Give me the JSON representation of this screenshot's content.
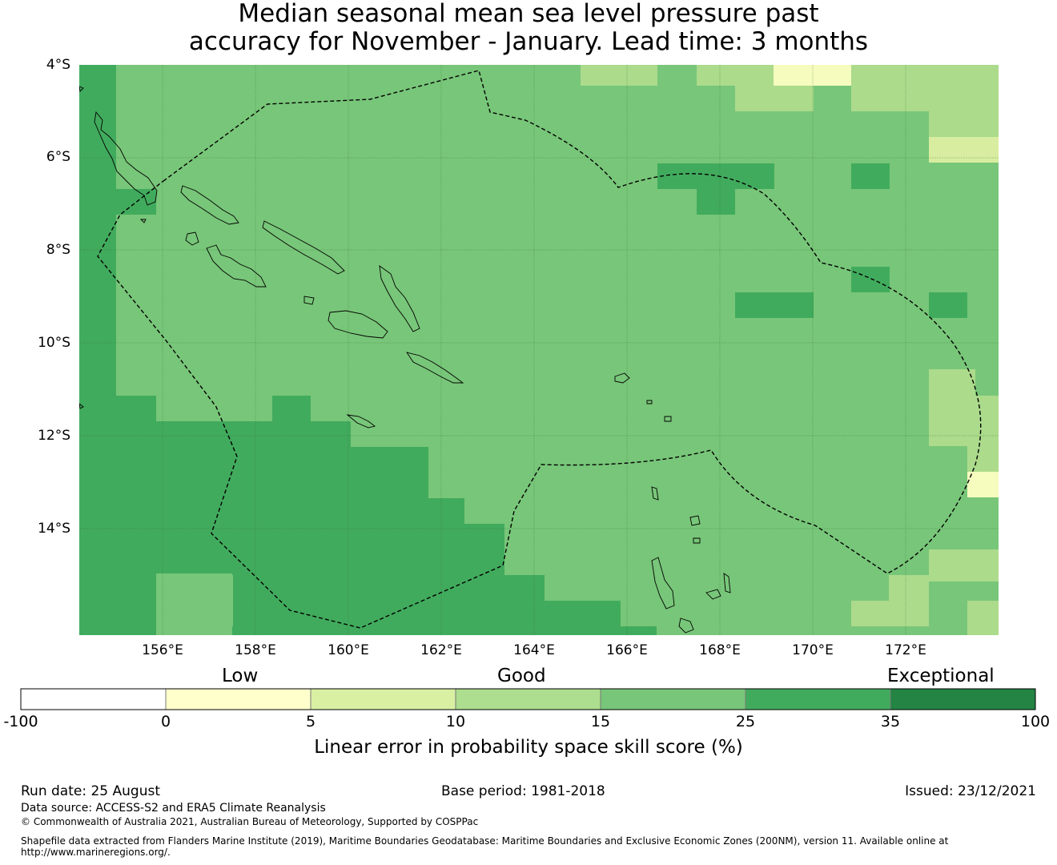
{
  "title": {
    "line1": "Median seasonal mean sea level pressure past",
    "line2": "accuracy for November - January. Lead time: 3 months"
  },
  "map": {
    "lat_labels": [
      "4°S",
      "6°S",
      "8°S",
      "10°S",
      "12°S",
      "14°S"
    ],
    "lon_labels": [
      "156°E",
      "158°E",
      "160°E",
      "162°E",
      "164°E",
      "166°E",
      "168°E",
      "170°E",
      "172°E"
    ],
    "extent": {
      "lon_min": 154.2,
      "lon_max": 174.0,
      "lat_min": -16.3,
      "lat_max": -4.0
    },
    "colors": {
      "c1": "#f6fbbe",
      "c2": "#d8eda0",
      "c3": "#abdb8b",
      "c4": "#78c679",
      "c5": "#41ab5d",
      "c6": "#238443"
    },
    "eez_boundary_style": "dashed",
    "coastline_color": "#000000"
  },
  "colorbar": {
    "category_labels": [
      "Low",
      "Good",
      "Exceptional"
    ],
    "ticks": [
      "-100",
      "0",
      "5",
      "10",
      "15",
      "25",
      "35",
      "100"
    ],
    "colors": [
      "#ffffff",
      "#ffffcc",
      "#d9f0a3",
      "#addd8e",
      "#78c679",
      "#41ab5d",
      "#238443"
    ],
    "label": "Linear error in probability space skill score (%)"
  },
  "footer": {
    "run_date": "Run date: 25 August",
    "base_period": "Base period: 1981-2018",
    "issued": "Issued: 23/12/2021",
    "data_source": "Data source: ACCESS-S2 and ERA5 Climate Reanalysis",
    "copyright": "© Commonwealth of Australia 2021, Australian Bureau of Meteorology, Supported by COSPPac",
    "shapefile_line1": "Shapefile data extracted from Flanders Marine Institute (2019), Maritime Boundaries Geodatabase: Maritime Boundaries and Exclusive Economic Zones (200NM), version 11. Available online at",
    "shapefile_line2": "http://www.marineregions.org/."
  }
}
